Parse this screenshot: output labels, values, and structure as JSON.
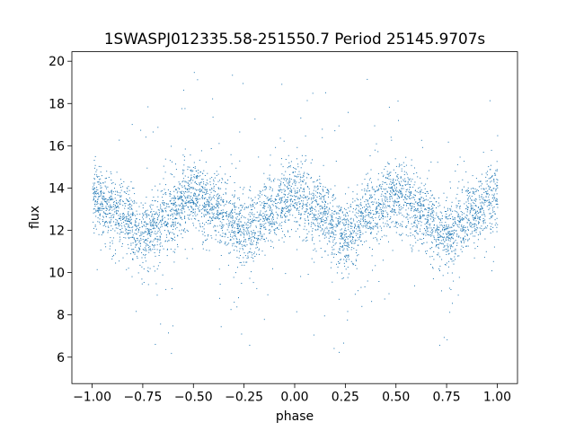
{
  "chart_data": {
    "type": "scatter",
    "title": "1SWASPJ012335.58-251550.7 Period 25145.9707s",
    "xlabel": "phase",
    "ylabel": "flux",
    "xlim": [
      -1.1,
      1.1
    ],
    "ylim": [
      4.75,
      20.45
    ],
    "xticks": [
      -1.0,
      -0.75,
      -0.5,
      -0.25,
      0.0,
      0.25,
      0.5,
      0.75,
      1.0
    ],
    "xtick_labels": [
      "−1.00",
      "−0.75",
      "−0.50",
      "−0.25",
      "0.00",
      "0.25",
      "0.50",
      "0.75",
      "1.00"
    ],
    "yticks": [
      6,
      8,
      10,
      12,
      14,
      16,
      18,
      20
    ],
    "ytick_labels": [
      "6",
      "8",
      "10",
      "12",
      "14",
      "16",
      "18",
      "20"
    ],
    "grid": false,
    "series": [
      {
        "color": "#1f77b4",
        "phase_range": [
          -1.0,
          1.0
        ],
        "trend": {
          "phase": [
            -1.0,
            -0.875,
            -0.75,
            -0.625,
            -0.5,
            -0.375,
            -0.25,
            -0.125,
            0.0,
            0.125,
            0.25,
            0.375,
            0.5,
            0.625,
            0.75,
            0.875,
            1.0
          ],
          "flux": [
            13.6,
            12.9,
            11.8,
            12.8,
            13.7,
            12.9,
            11.9,
            12.8,
            13.7,
            12.9,
            11.8,
            12.8,
            13.7,
            12.9,
            11.8,
            12.8,
            13.6
          ]
        },
        "band_halfwidth": 1.3,
        "outlier_range": [
          5.5,
          19.8
        ]
      }
    ]
  }
}
